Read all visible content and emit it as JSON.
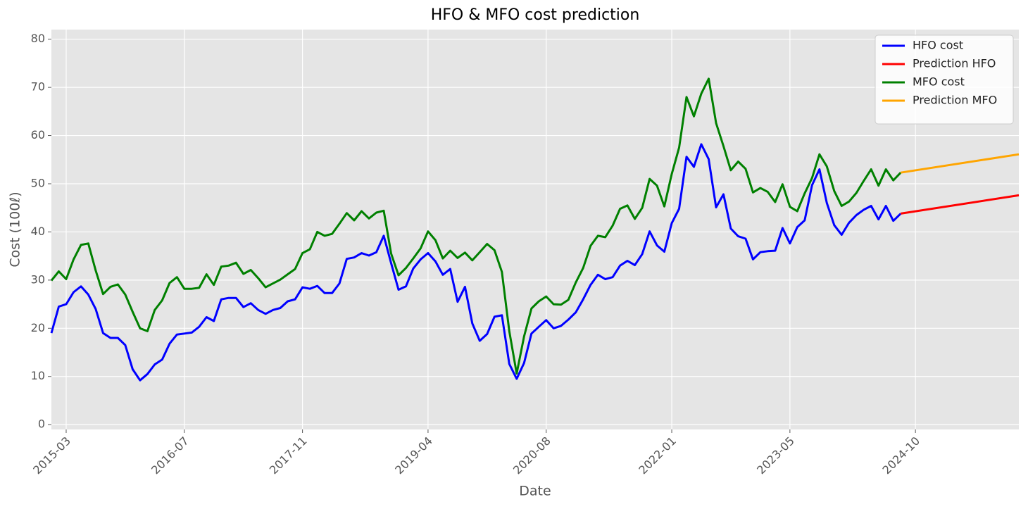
{
  "chart_data": {
    "type": "line",
    "title": "HFO & MFO cost prediction",
    "x_label": "Date",
    "y_label": "Cost (100ℓ)",
    "x": [
      "2015-01",
      "2015-02",
      "2015-03",
      "2015-04",
      "2015-05",
      "2015-06",
      "2015-07",
      "2015-08",
      "2015-09",
      "2015-10",
      "2015-11",
      "2015-12",
      "2016-01",
      "2016-02",
      "2016-03",
      "2016-04",
      "2016-05",
      "2016-06",
      "2016-07",
      "2016-08",
      "2016-09",
      "2016-10",
      "2016-11",
      "2016-12",
      "2017-01",
      "2017-02",
      "2017-03",
      "2017-04",
      "2017-05",
      "2017-06",
      "2017-07",
      "2017-08",
      "2017-09",
      "2017-10",
      "2017-11",
      "2017-12",
      "2018-01",
      "2018-02",
      "2018-03",
      "2018-04",
      "2018-05",
      "2018-06",
      "2018-07",
      "2018-08",
      "2018-09",
      "2018-10",
      "2018-11",
      "2018-12",
      "2019-01",
      "2019-02",
      "2019-03",
      "2019-04",
      "2019-05",
      "2019-06",
      "2019-07",
      "2019-08",
      "2019-09",
      "2019-10",
      "2019-11",
      "2019-12",
      "2020-01",
      "2020-02",
      "2020-03",
      "2020-04",
      "2020-05",
      "2020-06",
      "2020-07",
      "2020-08",
      "2020-09",
      "2020-10",
      "2020-11",
      "2020-12",
      "2021-01",
      "2021-02",
      "2021-03",
      "2021-04",
      "2021-05",
      "2021-06",
      "2021-07",
      "2021-08",
      "2021-09",
      "2021-10",
      "2021-11",
      "2021-12",
      "2022-01",
      "2022-02",
      "2022-03",
      "2022-04",
      "2022-05",
      "2022-06",
      "2022-07",
      "2022-08",
      "2022-09",
      "2022-10",
      "2022-11",
      "2022-12",
      "2023-01",
      "2023-02",
      "2023-03",
      "2023-04",
      "2023-05",
      "2023-06",
      "2023-07",
      "2023-08",
      "2023-09",
      "2023-10",
      "2023-11",
      "2023-12",
      "2024-01",
      "2024-02",
      "2024-03",
      "2024-04",
      "2024-05",
      "2024-06",
      "2024-07",
      "2024-08"
    ],
    "series": [
      {
        "name": "HFO cost",
        "color": "#0000ff",
        "values": [
          19,
          24.5,
          25,
          27.5,
          28.7,
          27,
          24,
          19,
          18,
          18,
          16.5,
          11.5,
          9.2,
          10.5,
          12.5,
          13.5,
          16.8,
          18.7,
          18.9,
          19.1,
          20.3,
          22.3,
          21.5,
          26,
          26.3,
          26.3,
          24.4,
          25.2,
          23.8,
          23,
          23.8,
          24.2,
          25.6,
          26,
          28.5,
          28.2,
          28.8,
          27.3,
          27.3,
          29.3,
          34.4,
          34.7,
          35.6,
          35.1,
          35.8,
          39.2,
          33.5,
          28,
          28.7,
          32.4,
          34.3,
          35.6,
          33.9,
          31.1,
          32.3,
          25.5,
          28.6,
          21,
          17.4,
          18.8,
          22.4,
          22.7,
          12.6,
          9.5,
          12.8,
          18.9,
          20.3,
          21.7,
          20,
          20.5,
          21.8,
          23.3,
          26,
          29,
          31.1,
          30.2,
          30.6,
          33,
          34,
          33.1,
          35.4,
          40.1,
          37.2,
          35.9,
          41.8,
          44.8,
          55.6,
          53.5,
          58.2,
          55.1,
          45.1,
          47.8,
          40.7,
          39.1,
          38.6,
          34.3,
          35.8,
          36,
          36.1,
          40.8,
          37.6,
          41,
          42.4,
          49.7,
          53,
          46,
          41.4,
          39.4,
          41.9,
          43.5,
          44.6,
          45.4,
          42.6,
          45.4,
          42.3,
          43.8
        ]
      },
      {
        "name": "Prediction HFO",
        "color": "#ff0000",
        "x": [
          "2024-08",
          "2025-12"
        ],
        "values": [
          43.8,
          47.6
        ]
      },
      {
        "name": "MFO cost",
        "color": "#008000",
        "values": [
          29.9,
          31.8,
          30.2,
          34.3,
          37.3,
          37.6,
          32,
          27.1,
          28.6,
          29.1,
          27,
          23.4,
          20,
          19.4,
          23.8,
          25.8,
          29.4,
          30.6,
          28.2,
          28.2,
          28.4,
          31.2,
          29,
          32.8,
          33,
          33.6,
          31.3,
          32.1,
          30.4,
          28.5,
          29.3,
          30.1,
          31.2,
          32.3,
          35.6,
          36.4,
          40,
          39.2,
          39.6,
          41.7,
          43.9,
          42.4,
          44.3,
          42.8,
          44,
          44.4,
          35.5,
          31,
          32.5,
          34.5,
          36.6,
          40.1,
          38.3,
          34.5,
          36.1,
          34.6,
          35.7,
          34.1,
          35.8,
          37.5,
          36.2,
          31.7,
          19.4,
          10.6,
          18.3,
          24.1,
          25.6,
          26.6,
          25,
          24.9,
          25.9,
          29.5,
          32.5,
          37.1,
          39.2,
          38.9,
          41.3,
          44.8,
          45.5,
          42.7,
          45,
          51,
          49.6,
          45.3,
          52,
          57.5,
          68,
          64,
          68.7,
          71.8,
          62.6,
          57.8,
          52.8,
          54.6,
          53.1,
          48.2,
          49.1,
          48.3,
          46.2,
          49.9,
          45.2,
          44.3,
          48,
          51.2,
          56.1,
          53.6,
          48.5,
          45.4,
          46.3,
          48.1,
          50.6,
          53,
          49.6,
          53,
          50.7,
          52.3
        ]
      },
      {
        "name": "Prediction MFO",
        "color": "#ffa500",
        "x": [
          "2024-08",
          "2025-12"
        ],
        "values": [
          52.3,
          56.1
        ]
      }
    ],
    "xlim": [
      "2015-01",
      "2025-12"
    ],
    "xticks": [
      "2015-03",
      "2016-07",
      "2017-11",
      "2019-04",
      "2020-08",
      "2022-01",
      "2023-05",
      "2024-10"
    ],
    "ylim": [
      -1,
      82
    ],
    "yticks": [
      0,
      10,
      20,
      30,
      40,
      50,
      60,
      70,
      80
    ],
    "grid": true,
    "legend": "upper right"
  }
}
